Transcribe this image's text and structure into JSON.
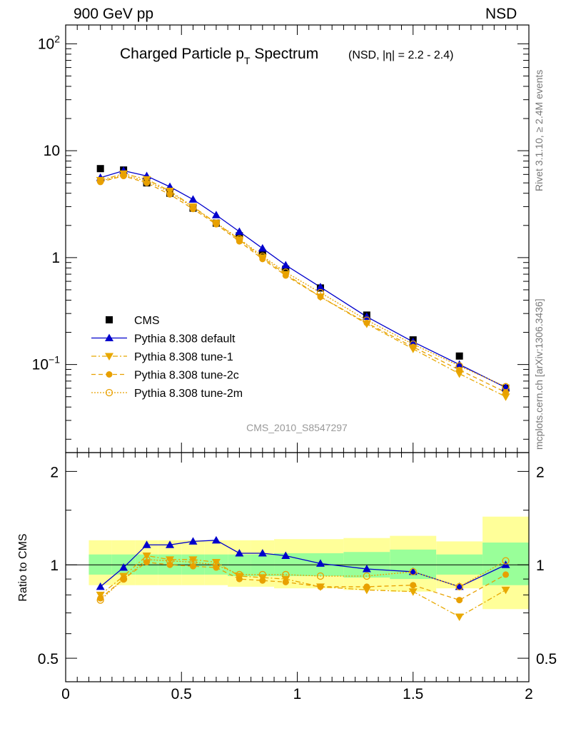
{
  "header": {
    "left": "900 GeV pp",
    "right": "NSD"
  },
  "side_labels": {
    "rivet": "Rivet 3.1.10, ≥ 2.4M events",
    "mcplots": "mcplots.cern.ch [arXiv:1306.3436]"
  },
  "chart_data": [
    {
      "type": "scatter",
      "panel": "main",
      "title_main": "Charged Particle p",
      "title_sub": "T",
      "title_tail": " Spectrum",
      "title_note": "(NSD, |η| = 2.2 - 2.4)",
      "watermark": "CMS_2010_S8547297",
      "yscale": "log",
      "xlim": [
        0,
        2
      ],
      "ylim": [
        0.015,
        150
      ],
      "yticks": [
        {
          "v": 0.1,
          "base": "10",
          "exp": "−1"
        },
        {
          "v": 1,
          "base": "1",
          "exp": ""
        },
        {
          "v": 10,
          "base": "10",
          "exp": ""
        },
        {
          "v": 100,
          "base": "10",
          "exp": "2"
        }
      ],
      "legend_position": "left-middle",
      "series": [
        {
          "name": "CMS",
          "style": "data",
          "color": "#000000",
          "marker": "square",
          "x": [
            0.15,
            0.25,
            0.35,
            0.45,
            0.55,
            0.65,
            0.75,
            0.85,
            0.95,
            1.1,
            1.3,
            1.5,
            1.7,
            1.9
          ],
          "y": [
            6.8,
            6.6,
            5.0,
            4.0,
            2.9,
            2.1,
            1.6,
            1.1,
            0.78,
            0.52,
            0.29,
            0.17,
            0.12,
            0.06
          ]
        },
        {
          "name": "Pythia 8.308 default",
          "style": "solid",
          "color": "#0000cc",
          "marker": "triangle-up",
          "x": [
            0.15,
            0.25,
            0.35,
            0.45,
            0.55,
            0.65,
            0.75,
            0.85,
            0.95,
            1.1,
            1.3,
            1.5,
            1.7,
            1.9
          ],
          "y": [
            5.6,
            6.5,
            5.8,
            4.6,
            3.5,
            2.5,
            1.75,
            1.22,
            0.85,
            0.53,
            0.28,
            0.163,
            0.1,
            0.061
          ]
        },
        {
          "name": "Pythia 8.308 tune-1",
          "style": "dashdot",
          "color": "#e8a800",
          "marker": "triangle-down",
          "x": [
            0.15,
            0.25,
            0.35,
            0.45,
            0.55,
            0.65,
            0.75,
            0.85,
            0.95,
            1.1,
            1.3,
            1.5,
            1.7,
            1.9
          ],
          "y": [
            5.3,
            6.1,
            5.4,
            4.2,
            3.0,
            2.1,
            1.47,
            1.0,
            0.7,
            0.43,
            0.24,
            0.14,
            0.082,
            0.05
          ]
        },
        {
          "name": "Pythia 8.308 tune-2c",
          "style": "dashed",
          "color": "#e8a000",
          "marker": "circle",
          "x": [
            0.15,
            0.25,
            0.35,
            0.45,
            0.55,
            0.65,
            0.75,
            0.85,
            0.95,
            1.1,
            1.3,
            1.5,
            1.7,
            1.9
          ],
          "y": [
            5.1,
            5.8,
            5.0,
            3.9,
            2.85,
            2.05,
            1.42,
            0.97,
            0.68,
            0.43,
            0.245,
            0.146,
            0.089,
            0.055
          ]
        },
        {
          "name": "Pythia 8.308 tune-2m",
          "style": "dotted",
          "color": "#e8a000",
          "marker": "circle-open",
          "x": [
            0.15,
            0.25,
            0.35,
            0.45,
            0.55,
            0.65,
            0.75,
            0.85,
            0.95,
            1.1,
            1.3,
            1.5,
            1.7,
            1.9
          ],
          "y": [
            5.2,
            5.9,
            5.2,
            4.1,
            2.95,
            2.1,
            1.5,
            1.03,
            0.73,
            0.47,
            0.26,
            0.155,
            0.097,
            0.062
          ]
        }
      ]
    },
    {
      "type": "line",
      "panel": "ratio",
      "ylabel": "Ratio to CMS",
      "xlim": [
        0,
        2
      ],
      "ylim": [
        0.42,
        2.3
      ],
      "yscale": "log",
      "xticks": [
        {
          "v": 0,
          "label": "0"
        },
        {
          "v": 0.5,
          "label": "0.5"
        },
        {
          "v": 1,
          "label": "1"
        },
        {
          "v": 1.5,
          "label": "1.5"
        },
        {
          "v": 2,
          "label": "2"
        }
      ],
      "yticks": [
        {
          "v": 0.5,
          "label": "0.5"
        },
        {
          "v": 1,
          "label": "1"
        },
        {
          "v": 2,
          "label": "2"
        }
      ],
      "bands": {
        "edges": [
          0.1,
          0.2,
          0.3,
          0.4,
          0.5,
          0.6,
          0.7,
          0.8,
          0.9,
          1.0,
          1.2,
          1.4,
          1.6,
          1.8,
          2.0
        ],
        "yellow_lo": [
          0.86,
          0.86,
          0.86,
          0.86,
          0.86,
          0.86,
          0.85,
          0.85,
          0.84,
          0.84,
          0.83,
          0.82,
          0.84,
          0.72
        ],
        "yellow_hi": [
          1.2,
          1.2,
          1.2,
          1.2,
          1.2,
          1.2,
          1.2,
          1.2,
          1.21,
          1.21,
          1.22,
          1.24,
          1.19,
          1.43
        ],
        "green_lo": [
          0.93,
          0.93,
          0.93,
          0.93,
          0.93,
          0.93,
          0.92,
          0.92,
          0.92,
          0.92,
          0.91,
          0.9,
          0.93,
          0.86
        ],
        "green_hi": [
          1.08,
          1.08,
          1.08,
          1.08,
          1.08,
          1.08,
          1.08,
          1.08,
          1.09,
          1.09,
          1.1,
          1.12,
          1.08,
          1.18
        ]
      },
      "series": [
        {
          "name": "Pythia 8.308 default",
          "style": "solid",
          "color": "#0000cc",
          "marker": "triangle-up",
          "x": [
            0.15,
            0.25,
            0.35,
            0.45,
            0.55,
            0.65,
            0.75,
            0.85,
            0.95,
            1.1,
            1.3,
            1.5,
            1.7,
            1.9
          ],
          "y": [
            0.85,
            0.98,
            1.16,
            1.16,
            1.19,
            1.2,
            1.09,
            1.09,
            1.07,
            1.01,
            0.97,
            0.95,
            0.85,
            1.0
          ]
        },
        {
          "name": "Pythia 8.308 tune-1",
          "style": "dashdot",
          "color": "#e8a800",
          "marker": "triangle-down",
          "x": [
            0.15,
            0.25,
            0.35,
            0.45,
            0.55,
            0.65,
            0.75,
            0.85,
            0.95,
            1.1,
            1.3,
            1.5,
            1.7,
            1.9
          ],
          "y": [
            0.8,
            0.92,
            1.07,
            1.04,
            1.04,
            1.02,
            0.92,
            0.91,
            0.9,
            0.85,
            0.83,
            0.82,
            0.68,
            0.83
          ]
        },
        {
          "name": "Pythia 8.308 tune-2c",
          "style": "dashed",
          "color": "#e8a000",
          "marker": "circle",
          "x": [
            0.15,
            0.25,
            0.35,
            0.45,
            0.55,
            0.65,
            0.75,
            0.85,
            0.95,
            1.1,
            1.3,
            1.5,
            1.7,
            1.9
          ],
          "y": [
            0.78,
            0.9,
            1.02,
            1.0,
            0.99,
            0.98,
            0.9,
            0.89,
            0.88,
            0.85,
            0.85,
            0.86,
            0.77,
            0.93
          ]
        },
        {
          "name": "Pythia 8.308 tune-2m",
          "style": "dotted",
          "color": "#e8a000",
          "marker": "circle-open",
          "x": [
            0.15,
            0.25,
            0.35,
            0.45,
            0.55,
            0.65,
            0.75,
            0.85,
            0.95,
            1.1,
            1.3,
            1.5,
            1.7,
            1.9
          ],
          "y": [
            0.77,
            0.9,
            1.04,
            1.03,
            1.02,
            1.0,
            0.93,
            0.93,
            0.93,
            0.92,
            0.92,
            0.95,
            0.85,
            1.03
          ]
        }
      ]
    }
  ]
}
